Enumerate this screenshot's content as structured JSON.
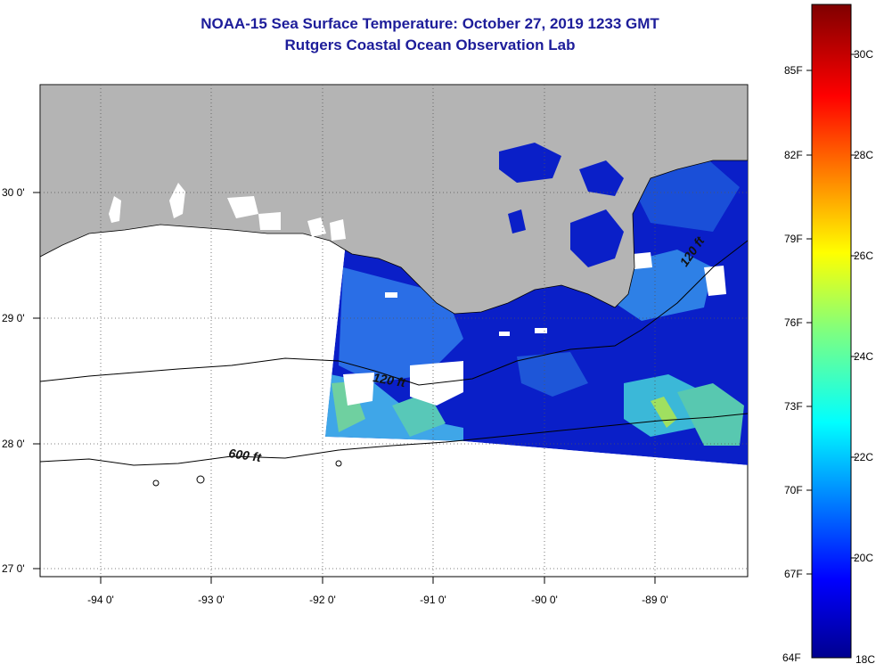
{
  "title": {
    "line1": "NOAA-15 Sea Surface Temperature:  October 27, 2019 1233 GMT",
    "line2": "Rutgers Coastal Ocean Observation Lab"
  },
  "map": {
    "lat_labels": [
      "30 0'",
      "29 0'",
      "28 0'",
      "27 0'"
    ],
    "lon_labels": [
      "-94 0'",
      "-93 0'",
      "-92 0'",
      "-91 0'",
      "-90 0'",
      "-89 0'"
    ],
    "contours": [
      "120 ft",
      "600 ft",
      "120 ft"
    ],
    "colors": {
      "land": "#b4b4b4",
      "no_data": "#ffffff",
      "sst_low": "#00008f",
      "sst_high": "#7f0000"
    }
  },
  "colorbar": {
    "fahrenheit": [
      "85F",
      "82F",
      "79F",
      "76F",
      "73F",
      "70F",
      "67F",
      "64F"
    ],
    "celsius": [
      "30C",
      "28C",
      "26C",
      "24C",
      "22C",
      "20C",
      "18C"
    ],
    "min_c": 18,
    "max_c": 31
  }
}
